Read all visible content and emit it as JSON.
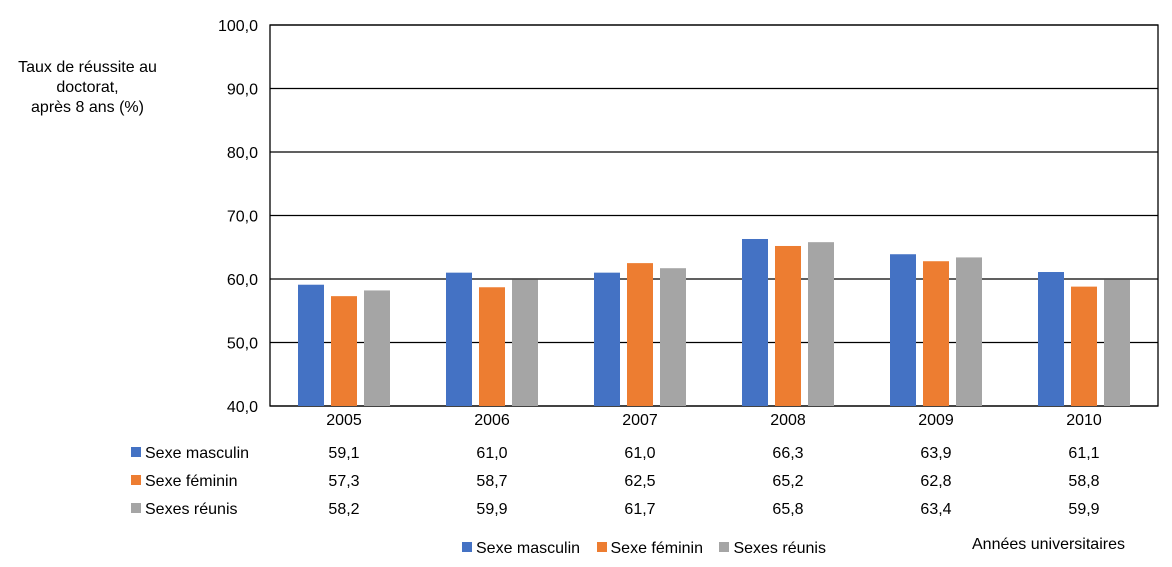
{
  "chart_data": {
    "type": "bar",
    "ylabel_lines": [
      "Taux de réussite au",
      "doctorat,",
      "après 8 ans (%)"
    ],
    "xlabel": "Années universitaires",
    "categories": [
      "2005",
      "2006",
      "2007",
      "2008",
      "2009",
      "2010"
    ],
    "ylim": [
      40,
      100
    ],
    "yticks": [
      "40,0",
      "50,0",
      "60,0",
      "70,0",
      "80,0",
      "90,0",
      "100,0"
    ],
    "ytick_values": [
      40,
      50,
      60,
      70,
      80,
      90,
      100
    ],
    "grid": true,
    "legend_position": "bottom",
    "series": [
      {
        "name": "Sexe masculin",
        "color": "#4472C4",
        "values": [
          59.1,
          61.0,
          61.0,
          66.3,
          63.9,
          61.1
        ],
        "labels": [
          "59,1",
          "61,0",
          "61,0",
          "66,3",
          "63,9",
          "61,1"
        ]
      },
      {
        "name": "Sexe féminin",
        "color": "#ED7D31",
        "values": [
          57.3,
          58.7,
          62.5,
          65.2,
          62.8,
          58.8
        ],
        "labels": [
          "57,3",
          "58,7",
          "62,5",
          "65,2",
          "62,8",
          "58,8"
        ]
      },
      {
        "name": "Sexes réunis",
        "color": "#A5A5A5",
        "values": [
          58.2,
          59.9,
          61.7,
          65.8,
          63.4,
          59.9
        ],
        "labels": [
          "58,2",
          "59,9",
          "61,7",
          "65,8",
          "63,4",
          "59,9"
        ]
      }
    ]
  }
}
